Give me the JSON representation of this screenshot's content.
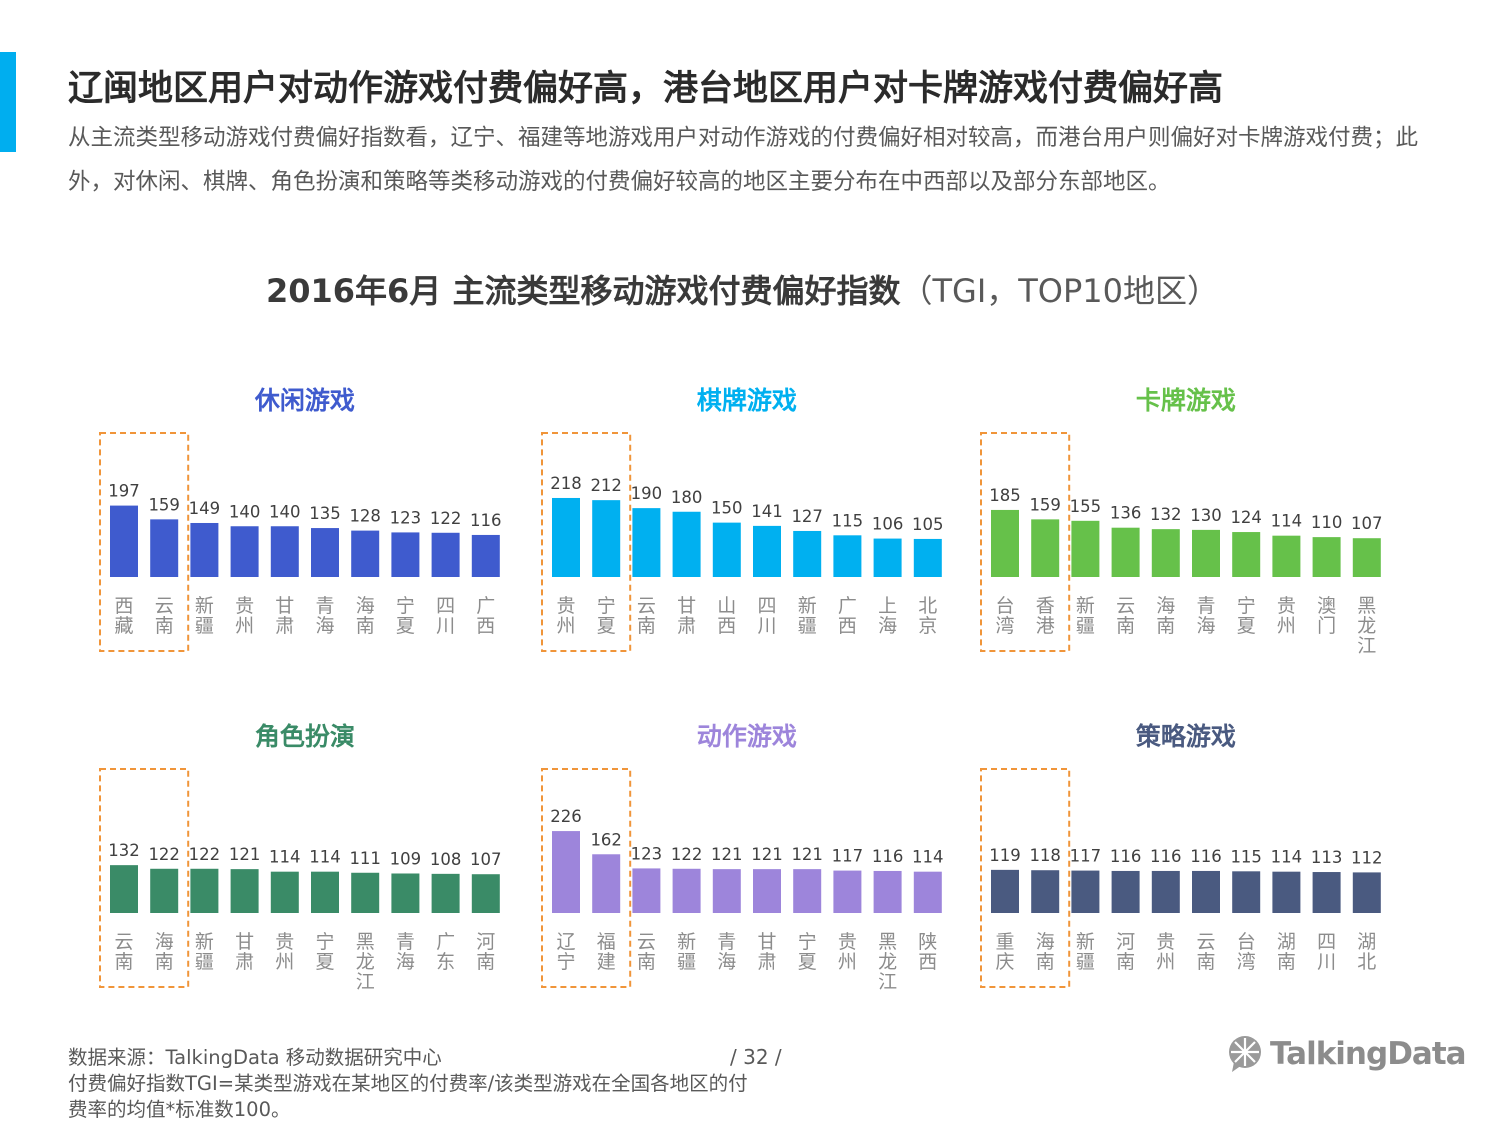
{
  "page": {
    "title": "辽闽地区用户对动作游戏付费偏好高，港台地区用户对卡牌游戏付费偏好高",
    "subtitle": "从主流类型移动游戏付费偏好指数看，辽宁、福建等地游戏用户对动作游戏的付费偏好相对较高，而港台用户则偏好对卡牌游戏付费；此外，对休闲、棋牌、角色扮演和策略等类移动游戏的付费偏好较高的地区主要分布在中西部以及部分东部地区。",
    "chart_heading_bold": "2016年6月 主流类型移动游戏付费偏好指数",
    "chart_heading_light": "（TGI，TOP10地区）",
    "page_number": "/ 32 /",
    "footer_source": "数据来源：TalkingData  移动数据研究中心",
    "footer_note": "付费偏好指数TGI=某类型游戏在某地区的付费率/该类型游戏在全国各地区的付费率的均值*标准数100。",
    "logo_text": "TalkingData",
    "colors": {
      "accent": "#00aeef",
      "highlight_box": "#f0953a",
      "value_label": "#404040",
      "category_label": "#8c8c8c"
    }
  },
  "chart_data": [
    {
      "type": "bar",
      "title": "休闲游戏",
      "color": "#3f5bce",
      "categories": [
        "西藏",
        "云南",
        "新疆",
        "贵州",
        "甘肃",
        "青海",
        "海南",
        "宁夏",
        "四川",
        "广西"
      ],
      "values": [
        197,
        159,
        149,
        140,
        140,
        135,
        128,
        123,
        122,
        116
      ],
      "highlight_top": 2
    },
    {
      "type": "bar",
      "title": "棋牌游戏",
      "color": "#00b0f0",
      "categories": [
        "贵州",
        "宁夏",
        "云南",
        "甘肃",
        "山西",
        "四川",
        "新疆",
        "广西",
        "上海",
        "北京"
      ],
      "values": [
        218,
        212,
        190,
        180,
        150,
        141,
        127,
        115,
        106,
        105
      ],
      "highlight_top": 2
    },
    {
      "type": "bar",
      "title": "卡牌游戏",
      "color": "#66c14a",
      "categories": [
        "台湾",
        "香港",
        "新疆",
        "云南",
        "海南",
        "青海",
        "宁夏",
        "贵州",
        "澳门",
        "黑龙江"
      ],
      "values": [
        185,
        159,
        155,
        136,
        132,
        130,
        124,
        114,
        110,
        107
      ],
      "highlight_top": 2
    },
    {
      "type": "bar",
      "title": "角色扮演",
      "color": "#3a8b67",
      "categories": [
        "云南",
        "海南",
        "新疆",
        "甘肃",
        "贵州",
        "宁夏",
        "黑龙江",
        "青海",
        "广东",
        "河南"
      ],
      "values": [
        132,
        122,
        122,
        121,
        114,
        114,
        111,
        109,
        108,
        107
      ],
      "highlight_top": 2
    },
    {
      "type": "bar",
      "title": "动作游戏",
      "color": "#9d85db",
      "categories": [
        "辽宁",
        "福建",
        "云南",
        "新疆",
        "青海",
        "甘肃",
        "宁夏",
        "贵州",
        "黑龙江",
        "陕西"
      ],
      "values": [
        226,
        162,
        123,
        122,
        121,
        121,
        121,
        117,
        116,
        114
      ],
      "highlight_top": 2
    },
    {
      "type": "bar",
      "title": "策略游戏",
      "color": "#4a5a80",
      "categories": [
        "重庆",
        "海南",
        "新疆",
        "河南",
        "贵州",
        "云南",
        "台湾",
        "湖南",
        "四川",
        "湖北"
      ],
      "values": [
        119,
        118,
        117,
        116,
        116,
        116,
        115,
        114,
        113,
        112
      ],
      "highlight_top": 2
    }
  ]
}
